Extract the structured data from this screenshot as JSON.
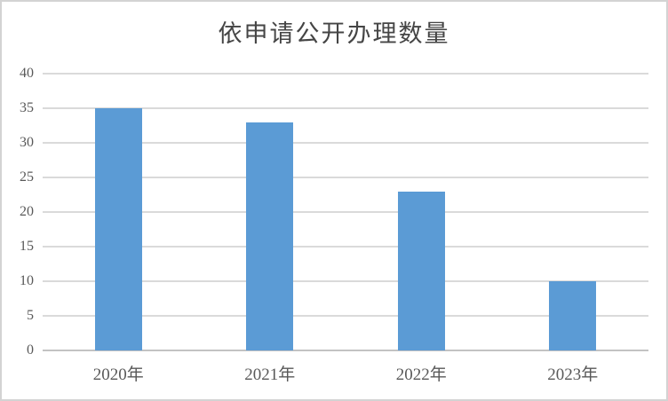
{
  "window": {
    "background": "#ffffff",
    "border_color": "#d3d3d3"
  },
  "chart_data": {
    "type": "bar",
    "title": "依申请公开办理数量",
    "categories": [
      "2020年",
      "2021年",
      "2022年",
      "2023年"
    ],
    "values": [
      35,
      33,
      23,
      10
    ],
    "xlabel": "",
    "ylabel": "",
    "ylim": [
      0,
      40
    ],
    "yticks": [
      0,
      5,
      10,
      15,
      20,
      25,
      30,
      35,
      40
    ],
    "grid": "horizontal",
    "legend": "none",
    "colors": {
      "bar": "#5b9bd5",
      "gridline": "#dadada",
      "axis_line": "#c3c3c3",
      "tick_text": "#595959",
      "title_text": "#454545"
    }
  }
}
